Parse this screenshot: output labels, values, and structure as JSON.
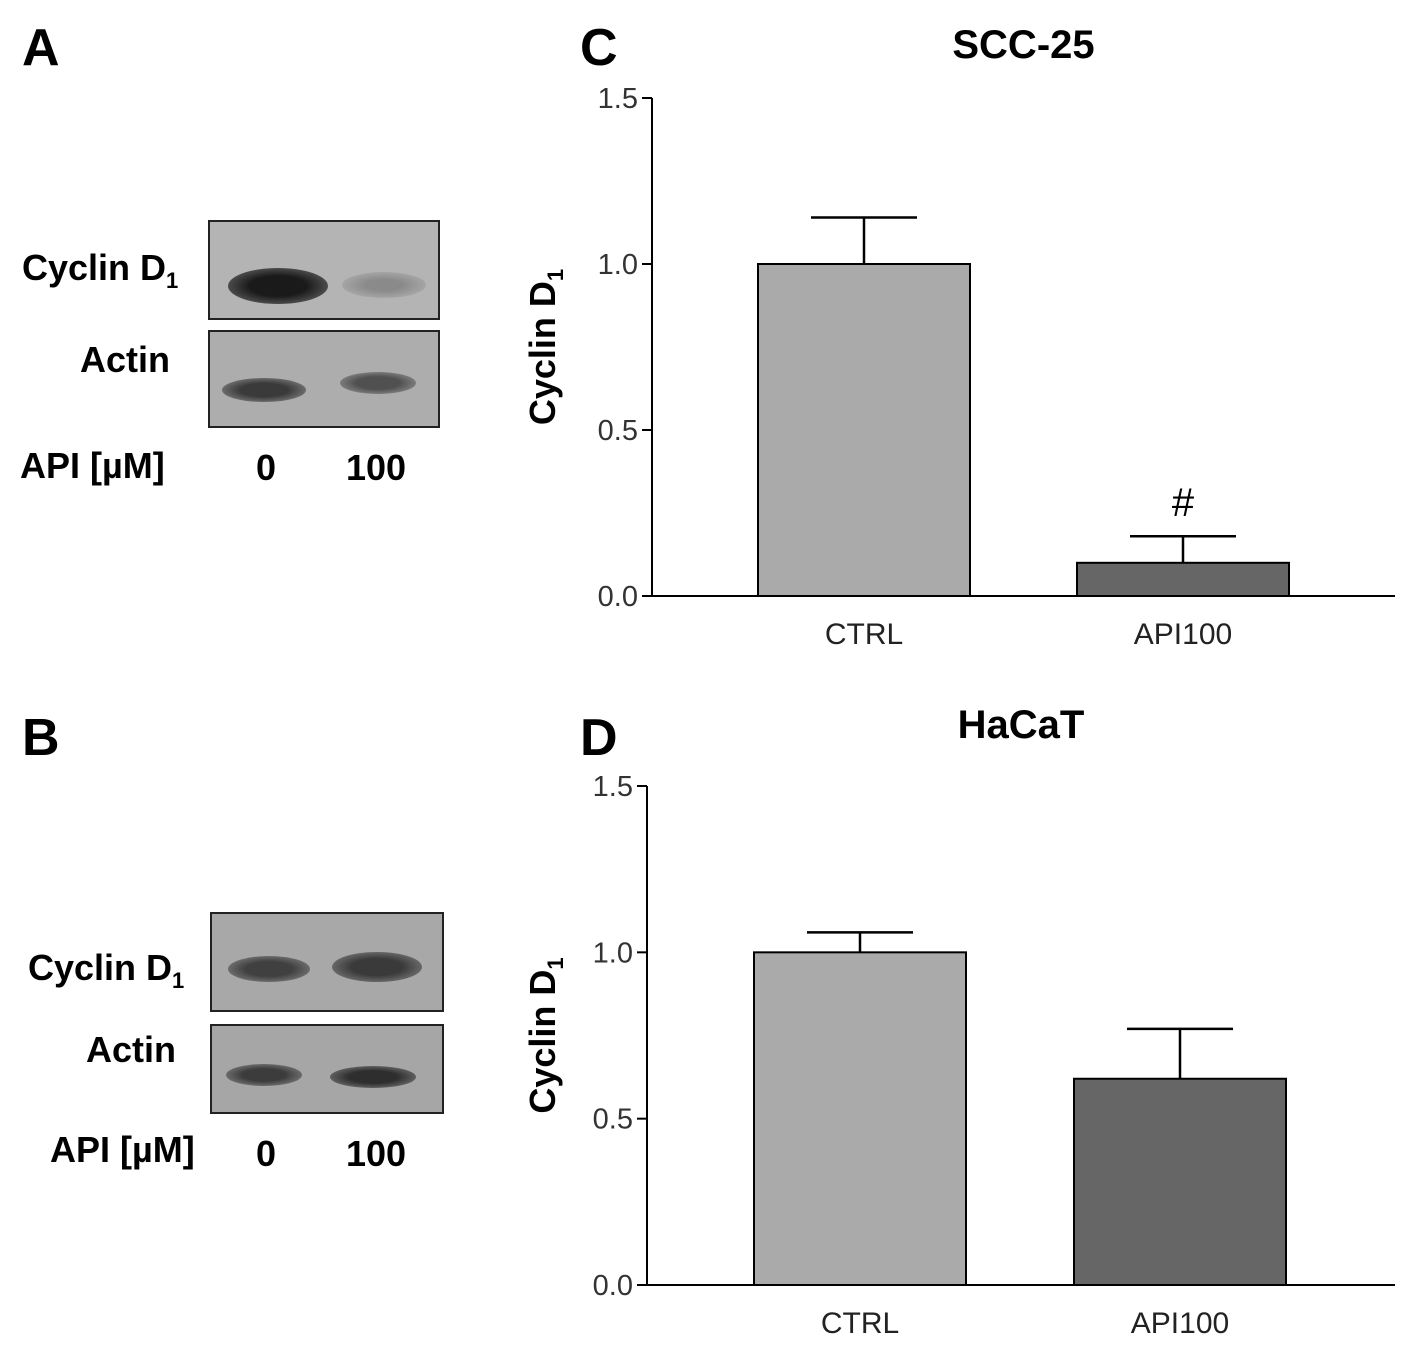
{
  "panels": {
    "A": {
      "letter": "A",
      "row1_label": "Cyclin D",
      "row1_sub": "1",
      "row2_label": "Actin",
      "dose_label": "API [µM]",
      "lane1": "0",
      "lane2": "100"
    },
    "B": {
      "letter": "B",
      "row1_label": "Cyclin D",
      "row1_sub": "1",
      "row2_label": "Actin",
      "dose_label": "API [µM]",
      "lane1": "0",
      "lane2": "100"
    },
    "C": {
      "letter": "C"
    },
    "D": {
      "letter": "D"
    }
  },
  "colors": {
    "ctrl_bar": "#aaaaaa",
    "api_bar": "#666666",
    "axis": "#000000"
  },
  "chart_data": [
    {
      "type": "bar",
      "title": "SCC-25",
      "ylabel": "Cyclin D",
      "ylabel_sub": "1",
      "categories": [
        "CTRL",
        "API100"
      ],
      "values": [
        1.0,
        0.1
      ],
      "errors": [
        0.14,
        0.08
      ],
      "annotations": [
        "",
        "#"
      ],
      "ylim": [
        0,
        1.5
      ],
      "yticks": [
        "0.0",
        "0.5",
        "1.0",
        "1.5"
      ]
    },
    {
      "type": "bar",
      "title": "HaCaT",
      "ylabel": "Cyclin D",
      "ylabel_sub": "1",
      "categories": [
        "CTRL",
        "API100"
      ],
      "values": [
        1.0,
        0.62
      ],
      "errors": [
        0.06,
        0.15
      ],
      "annotations": [
        "",
        ""
      ],
      "ylim": [
        0,
        1.5
      ],
      "yticks": [
        "0.0",
        "0.5",
        "1.0",
        "1.5"
      ]
    }
  ]
}
